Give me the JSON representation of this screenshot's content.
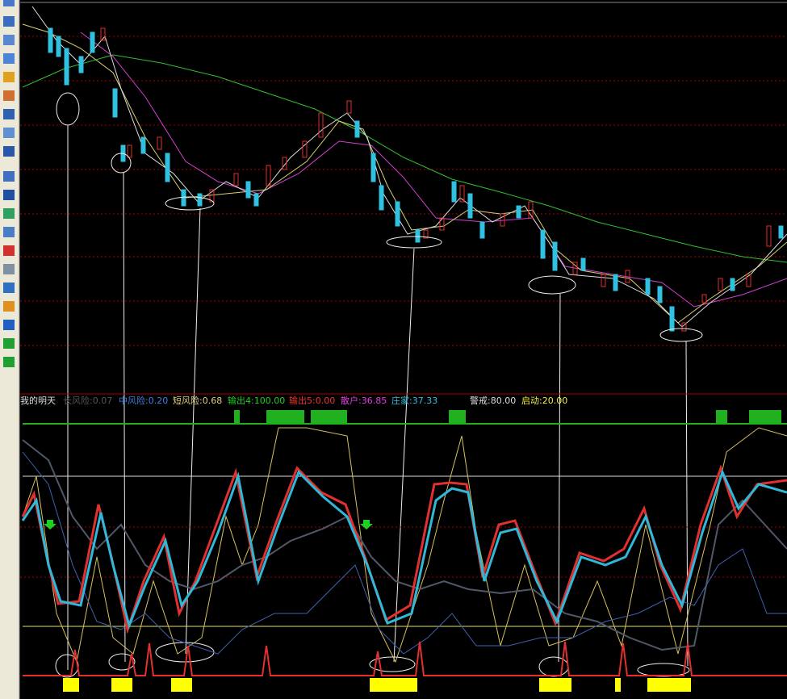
{
  "indicator_legend": [
    "我的明天",
    "长风险:0.07",
    "中风险:0.20",
    "短风险:0.68",
    "输出4:100.00",
    "输出5:0.00",
    "散户:36.85",
    "庄家:37.33",
    "警戒:80.00",
    "启动:20.00"
  ]
}
